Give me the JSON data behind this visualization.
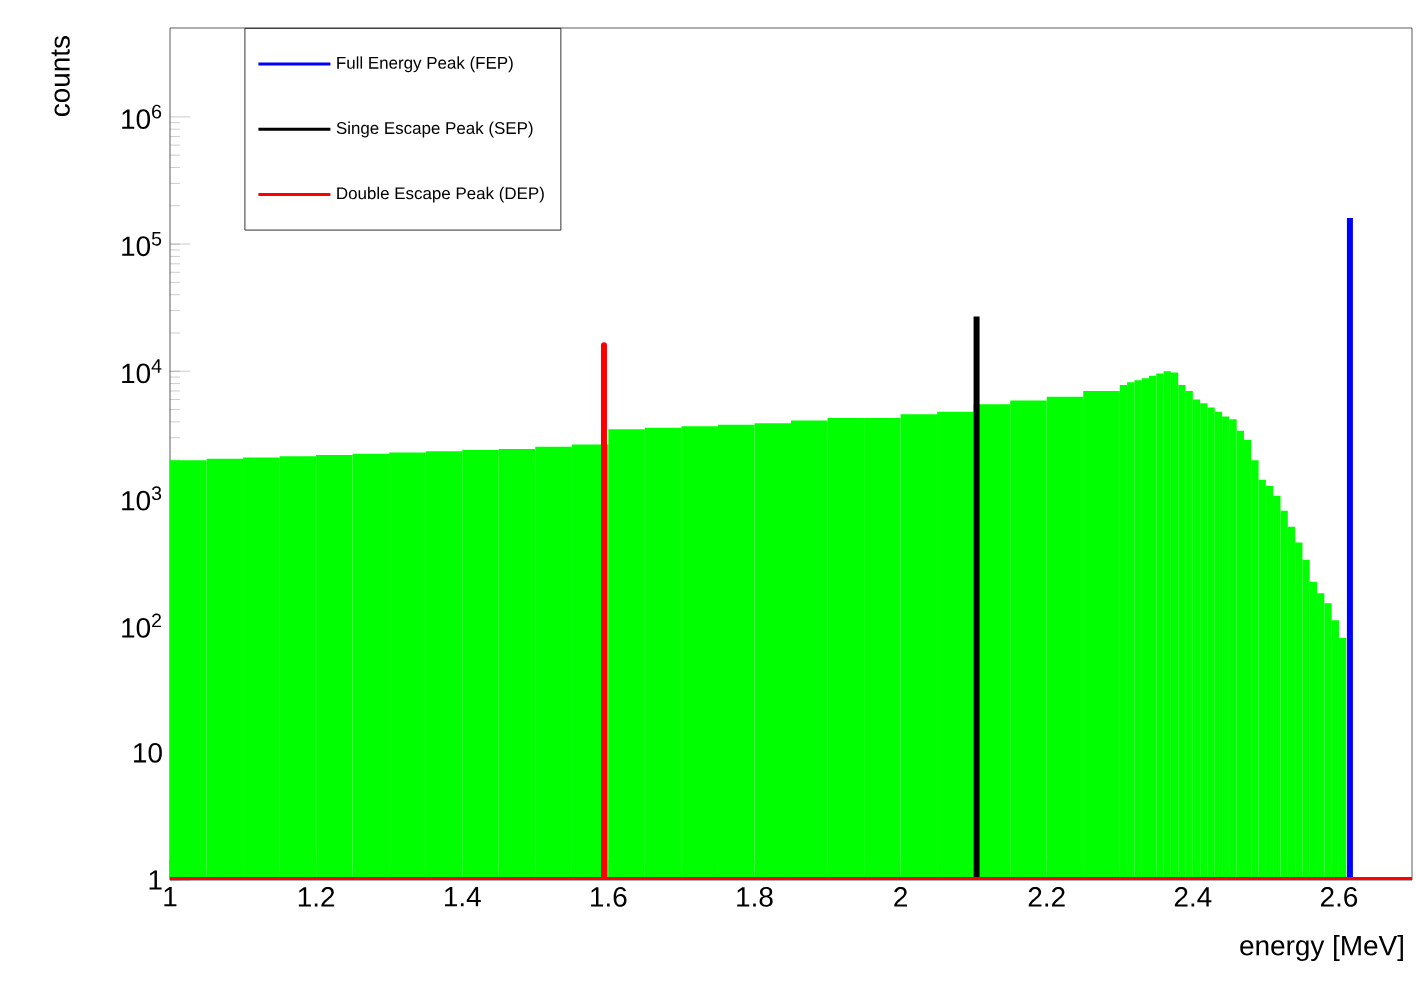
{
  "chart_data": {
    "type": "histogram",
    "xlabel": "energy [MeV]",
    "ylabel": "counts",
    "bins": [
      1.0,
      1.05,
      1.1,
      1.15,
      1.2,
      1.25,
      1.3,
      1.35,
      1.4,
      1.45,
      1.5,
      1.55,
      1.6,
      1.65,
      1.7,
      1.75,
      1.8,
      1.85,
      1.9,
      1.95,
      2.0,
      2.05,
      2.1,
      2.15,
      2.2,
      2.25,
      2.3,
      2.31,
      2.32,
      2.33,
      2.34,
      2.35,
      2.36,
      2.37,
      2.38,
      2.39,
      2.4,
      2.41,
      2.42,
      2.43,
      2.44,
      2.45,
      2.46,
      2.47,
      2.48,
      2.49,
      2.5,
      2.51,
      2.52,
      2.53,
      2.54,
      2.55,
      2.56,
      2.57,
      2.58,
      2.59,
      2.6,
      2.61
    ],
    "values": [
      2000,
      2050,
      2100,
      2150,
      2200,
      2250,
      2300,
      2350,
      2400,
      2450,
      2550,
      2650,
      3500,
      3600,
      3700,
      3800,
      3900,
      4100,
      4300,
      4300,
      4600,
      4800,
      5500,
      5900,
      6300,
      7000,
      7800,
      8200,
      8500,
      8800,
      9200,
      9600,
      10000,
      9800,
      7800,
      7000,
      6000,
      5600,
      5200,
      4800,
      4400,
      4200,
      3400,
      2900,
      2000,
      1400,
      1250,
      1050,
      800,
      600,
      450,
      330,
      220,
      180,
      150,
      110,
      80
    ],
    "color": "#00ff00",
    "series": [
      {
        "type": "line",
        "name": "Full Energy Peak (FEP)",
        "color": "#0000ff",
        "x": [
          2.615,
          2.615
        ],
        "values": [
          1,
          160000
        ]
      },
      {
        "type": "line",
        "name": "Singe Escape Peak (SEP)",
        "color": "#000000",
        "x": [
          2.104,
          2.104
        ],
        "values": [
          1,
          27000
        ]
      },
      {
        "type": "line",
        "name": "Double Escape Peak (DEP)",
        "color": "#ff0000",
        "x": [
          1.0,
          1.594,
          1.594,
          1.594,
          2.7
        ],
        "values": [
          1,
          1,
          16000,
          1,
          1
        ]
      }
    ],
    "log": "y",
    "xlim": [
      1,
      2.7
    ],
    "ylim": [
      1,
      5000000
    ],
    "xticks": [
      1,
      1.2,
      1.4,
      1.6,
      1.8,
      2,
      2.2,
      2.4,
      2.6
    ],
    "yticks": [
      1,
      10,
      {
        "value": 100,
        "label": "10$^{2}$"
      },
      {
        "value": 1000,
        "label": "10$^{3}$"
      },
      {
        "value": 10000,
        "label": "10$^{4}$"
      },
      {
        "value": 100000,
        "label": "10$^{5}$"
      },
      {
        "value": 1000000,
        "label": "10$^{6}$"
      }
    ],
    "legend": "top left",
    "grid": false
  }
}
